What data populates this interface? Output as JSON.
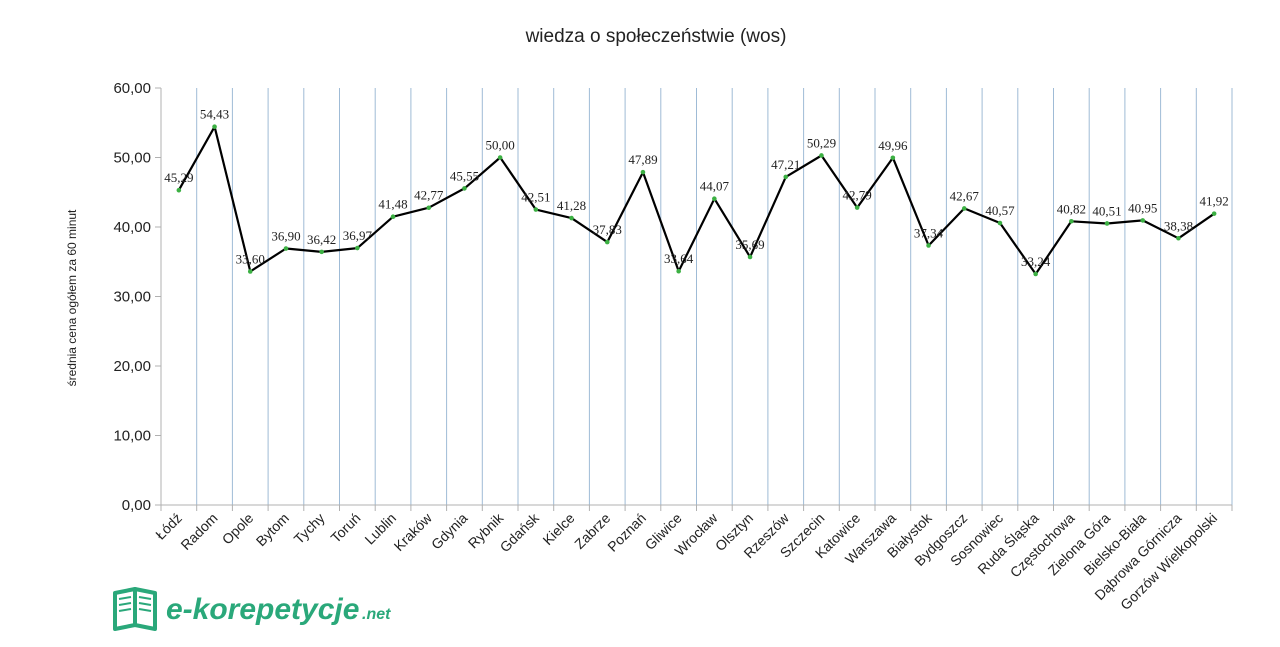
{
  "chart_data": {
    "type": "line",
    "title": "wiedza o społeczeństwie (wos)",
    "xlabel": "",
    "ylabel": "średnia cena ogółem za 60 minut",
    "ylim": [
      0,
      60
    ],
    "yticks": [
      "0,00",
      "10,00",
      "20,00",
      "30,00",
      "40,00",
      "50,00",
      "60,00"
    ],
    "ytick_values": [
      0,
      10,
      20,
      30,
      40,
      50,
      60
    ],
    "grid": "vertical",
    "categories": [
      "Łódź",
      "Radom",
      "Opole",
      "Bytom",
      "Tychy",
      "Toruń",
      "Lublin",
      "Kraków",
      "Gdynia",
      "Rybnik",
      "Gdańsk",
      "Kielce",
      "Zabrze",
      "Poznań",
      "Gliwice",
      "Wrocław",
      "Olsztyn",
      "Rzeszów",
      "Szczecin",
      "Katowice",
      "Warszawa",
      "Białystok",
      "Bydgoszcz",
      "Sosnowiec",
      "Ruda Śląska",
      "Częstochowa",
      "Zielona Góra",
      "Bielsko-Biała",
      "Dąbrowa Górnicza",
      "Gorzów Wielkopolski"
    ],
    "values": [
      45.29,
      54.43,
      33.6,
      36.9,
      36.42,
      36.97,
      41.48,
      42.77,
      45.55,
      50.0,
      42.51,
      41.28,
      37.83,
      47.89,
      33.64,
      44.07,
      35.69,
      47.21,
      50.29,
      42.79,
      49.96,
      37.34,
      42.67,
      40.57,
      33.24,
      40.82,
      40.51,
      40.95,
      38.38,
      41.92
    ],
    "data_labels": [
      "45,29",
      "54,43",
      "33,60",
      "36,90",
      "36,42",
      "36,97",
      "41,48",
      "42,77",
      "45,55",
      "50,00",
      "42,51",
      "41,28",
      "37,83",
      "47,89",
      "33,64",
      "44,07",
      "35,69",
      "47,21",
      "50,29",
      "42,79",
      "49,96",
      "37,34",
      "42,67",
      "40,57",
      "33,24",
      "40,82",
      "40,51",
      "40,95",
      "38,38",
      "41,92"
    ],
    "line_color": "#000000",
    "marker_color": "#3cb043",
    "grid_color": "#9fbbd6"
  },
  "watermark": {
    "text": "e-korepetycje",
    "suffix": ".net",
    "color": "#2aa87a",
    "icon": "open-book-icon"
  }
}
